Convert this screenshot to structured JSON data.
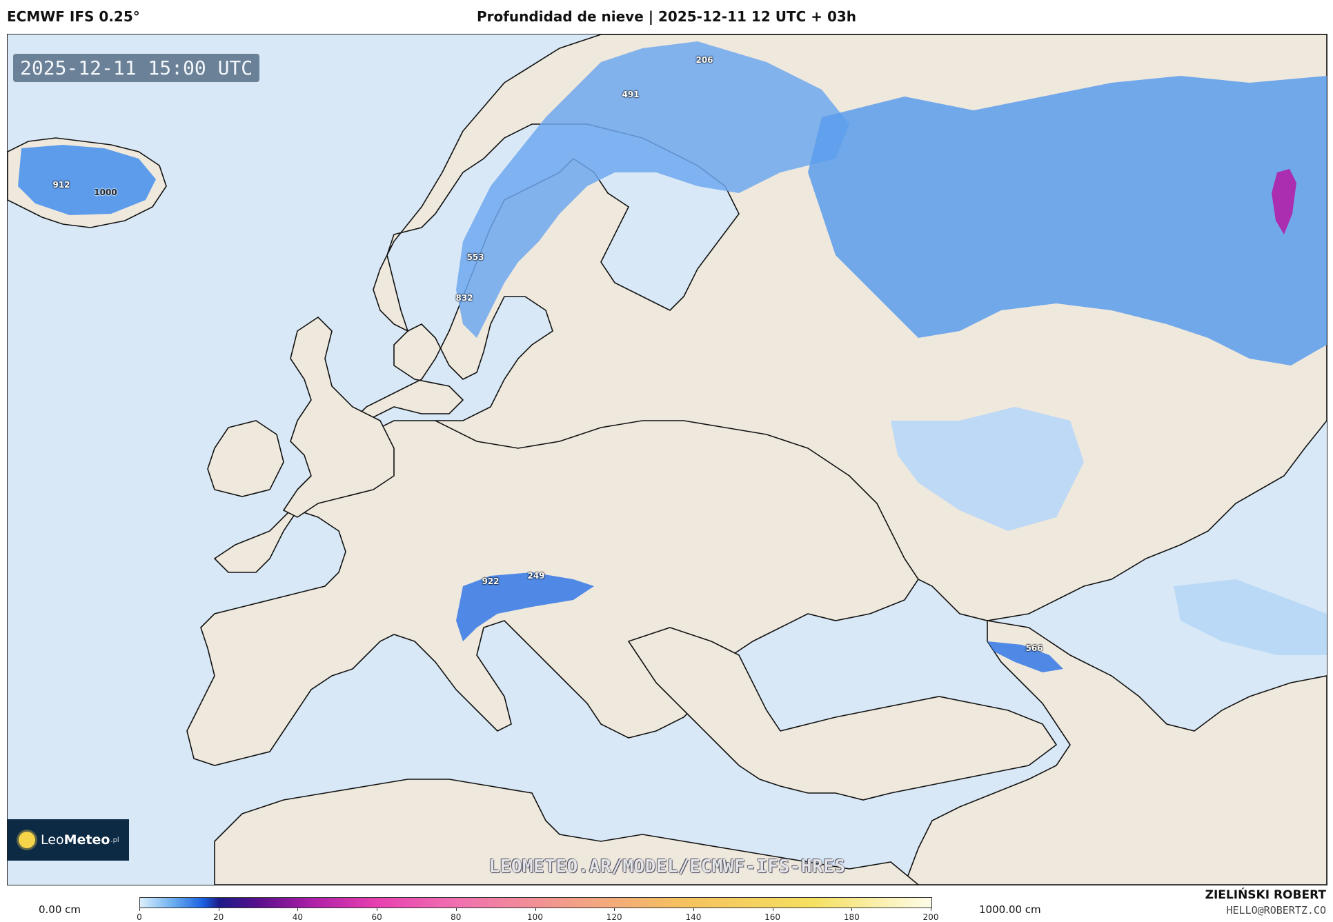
{
  "header": {
    "model": "ECMWF IFS 0.25°",
    "title": "Profundidad de nieve | 2025-12-11 12 UTC + 03h"
  },
  "map": {
    "timestamp": "2025-12-11 15:00 UTC",
    "watermark": "LEOMETEO.AR/MODEL/ECMWF-IFS-HRES",
    "logo": {
      "prefix": "Leo",
      "brand": "Meteo",
      "suffix": ".pl"
    },
    "value_labels": [
      "206",
      "491",
      "912",
      "1000",
      "553",
      "832",
      "922",
      "249",
      "566"
    ],
    "colors": {
      "sea": "#d8e8f6",
      "land": "#efe8dd",
      "snow_light": "#b7d7f7",
      "snow_mid": "#4d94ec",
      "snow_deep": "#1d5fe0",
      "snow_extreme": "#b020a8"
    }
  },
  "colorbar": {
    "min_label": "0.00 cm",
    "max_label": "1000.00 cm",
    "ticks": [
      "0",
      "20",
      "40",
      "60",
      "80",
      "100",
      "120",
      "140",
      "160",
      "180",
      "200"
    ]
  },
  "credits": {
    "author": "ZIELIŃSKI ROBERT",
    "email": "HELLO@ROBERTZ.CO"
  }
}
